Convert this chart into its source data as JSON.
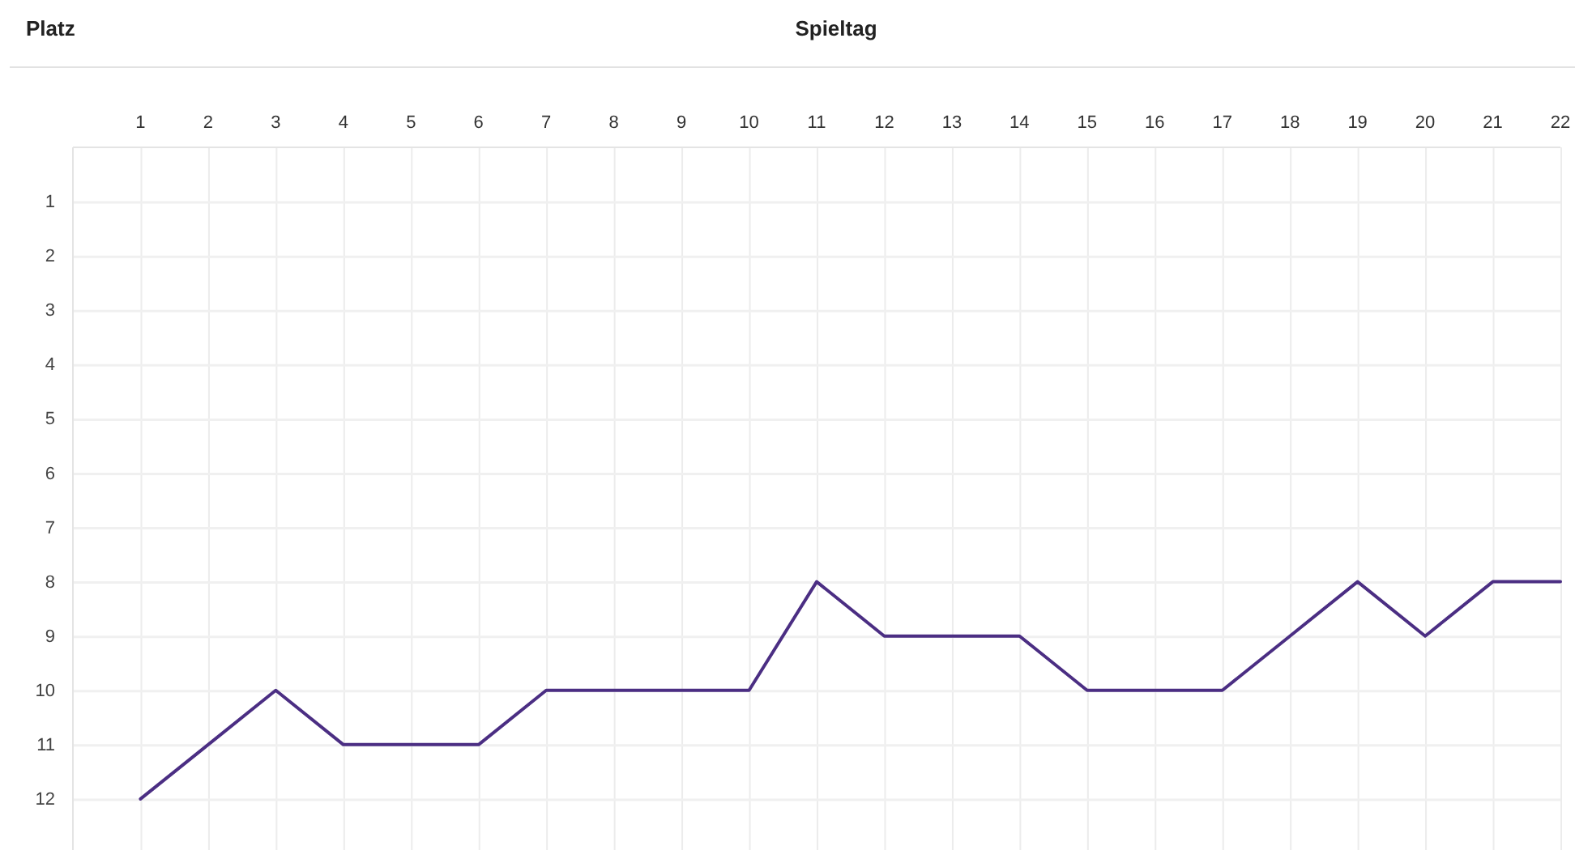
{
  "chart_data": {
    "type": "line",
    "xlabel": "Spieltag",
    "ylabel": "Platz",
    "x": [
      1,
      2,
      3,
      4,
      5,
      6,
      7,
      8,
      9,
      10,
      11,
      12,
      13,
      14,
      15,
      16,
      17,
      18,
      19,
      20,
      21,
      22
    ],
    "series": [
      {
        "color": "#4b2e83",
        "values": [
          12,
          11,
          10,
          11,
          11,
          11,
          10,
          10,
          10,
          10,
          8,
          9,
          9,
          9,
          10,
          10,
          10,
          9,
          8,
          9,
          8,
          8
        ]
      }
    ],
    "xlim": [
      0,
      22
    ],
    "xticks": [
      1,
      2,
      3,
      4,
      5,
      6,
      7,
      8,
      9,
      10,
      11,
      12,
      13,
      14,
      15,
      16,
      17,
      18,
      19,
      20,
      21,
      22
    ],
    "ylim": [
      13,
      0
    ],
    "yticks": [
      1,
      2,
      3,
      4,
      5,
      6,
      7,
      8,
      9,
      10,
      11,
      12
    ],
    "grid": true,
    "marker": "none",
    "line_style": "solid"
  }
}
